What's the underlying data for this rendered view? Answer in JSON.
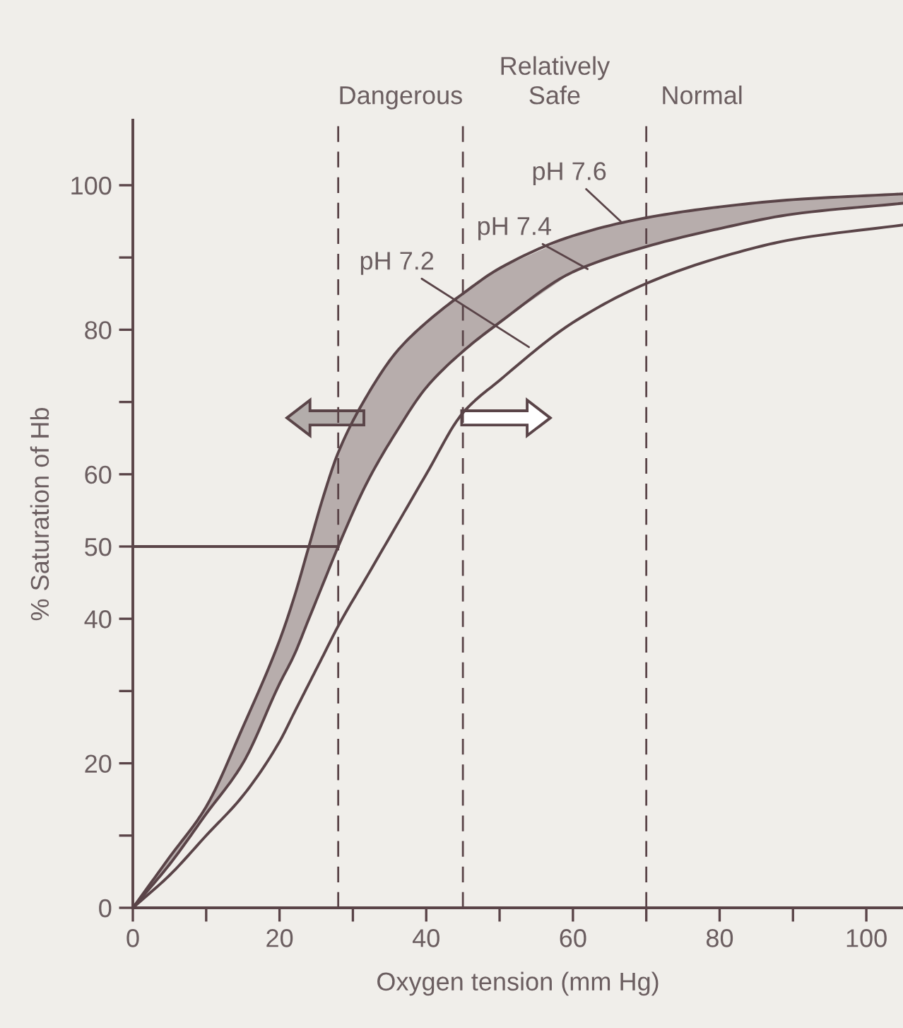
{
  "chart_data": {
    "type": "line",
    "xlabel": "Oxygen tension (mm Hg)",
    "ylabel": "% Saturation of Hb",
    "x": [
      0,
      5,
      10,
      15,
      20,
      22,
      24,
      26,
      28,
      32,
      36,
      40,
      45,
      50,
      60,
      70,
      80,
      90,
      105
    ],
    "series": [
      {
        "color": "#5a4448",
        "values": [
          0,
          7,
          14,
          25,
          37,
          43,
          50,
          57,
          63,
          71,
          77,
          81,
          85,
          88.5,
          93,
          95.5,
          97,
          98,
          98.8
        ]
      },
      {
        "color": "#5a4448",
        "values": [
          0,
          6,
          13,
          20,
          31,
          35,
          40,
          45,
          50,
          59,
          66,
          72,
          77,
          81,
          88,
          91.5,
          94,
          96,
          97.5
        ],
        "lower": [
          0,
          6,
          13,
          20,
          31,
          35,
          40,
          45,
          50,
          59,
          66,
          72,
          77,
          81,
          88,
          91.5,
          94,
          96,
          97.5
        ],
        "upper": [
          0,
          7,
          14,
          25,
          37,
          43,
          50,
          57,
          63,
          71,
          77,
          81,
          85,
          88.5,
          93,
          95.5,
          97,
          98,
          98.8
        ]
      },
      {
        "color": "#5a4448",
        "values": [
          0,
          4.5,
          10,
          15.5,
          23,
          27,
          31,
          35,
          39,
          46,
          53,
          60,
          68.5,
          73,
          81,
          86.4,
          90,
          92.5,
          94.5
        ]
      },
      {
        "color": "#5a4448",
        "x": [
          0,
          28
        ],
        "values": [
          50,
          50
        ]
      }
    ],
    "xlim": [
      0,
      105
    ],
    "ylim": [
      0,
      109
    ],
    "xticks": [
      0,
      {
        "value": 10,
        "label": null
      },
      20,
      {
        "value": 30,
        "label": null
      },
      40,
      {
        "value": 50,
        "label": null
      },
      60,
      {
        "value": 70,
        "label": null
      },
      80,
      {
        "value": 90,
        "label": null
      },
      100
    ],
    "yticks": [
      0,
      {
        "value": 10,
        "label": null
      },
      20,
      {
        "value": 30,
        "label": null
      },
      40,
      50,
      60,
      {
        "value": 70,
        "label": null
      },
      80,
      {
        "value": 90,
        "label": null
      },
      100
    ],
    "ref_lines": [
      {
        "axis": "x",
        "value": 28,
        "label": "Dangerous",
        "line_style": "dashed",
        "color": "#5a4448"
      },
      {
        "axis": "x",
        "value": 45,
        "label": "Relatively\nSafe",
        "line_style": "dashed",
        "color": "#5a4448"
      },
      {
        "axis": "x",
        "value": 70,
        "label": "Normal",
        "line_style": "dashed",
        "color": "#5a4448"
      }
    ],
    "annotations": [
      {
        "text": "pH 7.6",
        "x": 66.5,
        "y": 95
      },
      {
        "text": "pH 7.4",
        "x": 62,
        "y": 88.4
      },
      {
        "text": "pH 7.2",
        "x": 54,
        "y": 77.6
      }
    ],
    "grid": false,
    "legend": false,
    "marker": "none",
    "line_style": "solid"
  }
}
